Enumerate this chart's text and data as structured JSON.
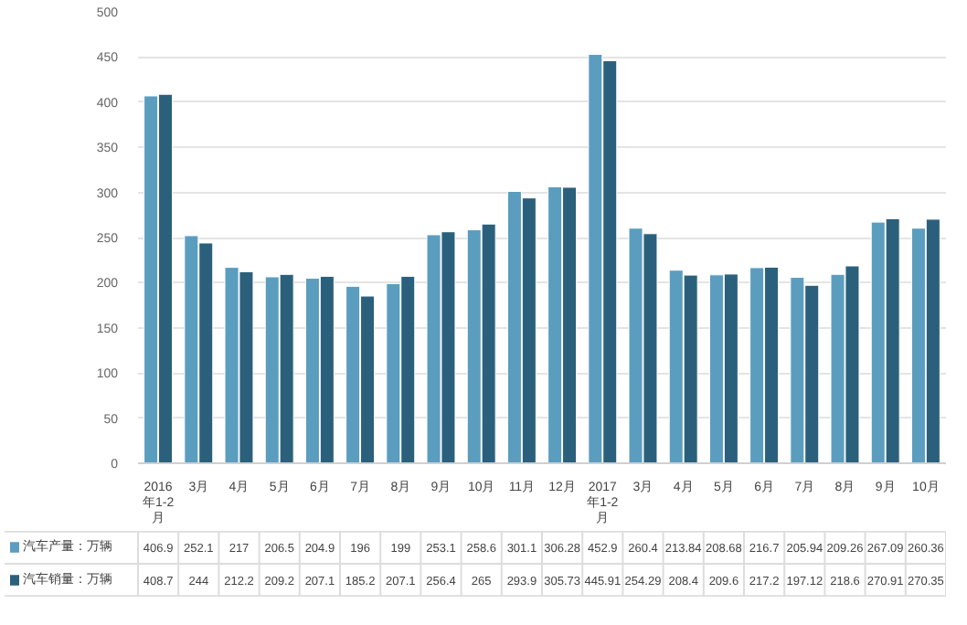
{
  "chart_data": {
    "type": "bar",
    "categories": [
      "2016年1-2月",
      "3月",
      "4月",
      "5月",
      "6月",
      "7月",
      "8月",
      "9月",
      "10月",
      "11月",
      "12月",
      "2017年1-2月",
      "3月",
      "4月",
      "5月",
      "6月",
      "7月",
      "8月",
      "9月",
      "10月"
    ],
    "series": [
      {
        "name": "汽车产量：万辆",
        "color": "#5b9dbf",
        "values": [
          406.9,
          252.1,
          217,
          206.5,
          204.9,
          196,
          199,
          253.1,
          258.6,
          301.1,
          306.28,
          452.9,
          260.4,
          213.84,
          208.68,
          216.7,
          205.94,
          209.26,
          267.09,
          260.36
        ]
      },
      {
        "name": "汽车销量：万辆",
        "color": "#2b607c",
        "values": [
          408.7,
          244,
          212.2,
          209.2,
          207.1,
          185.2,
          207.1,
          256.4,
          265,
          293.9,
          305.73,
          445.91,
          254.29,
          208.4,
          209.6,
          217.2,
          197.12,
          218.6,
          270.91,
          270.35
        ]
      }
    ],
    "ylim": [
      0,
      500
    ],
    "yticks": [
      0,
      50,
      100,
      150,
      200,
      250,
      300,
      350,
      400,
      450,
      500
    ],
    "grid": "y",
    "legend": "bottom",
    "data_labels": true
  }
}
